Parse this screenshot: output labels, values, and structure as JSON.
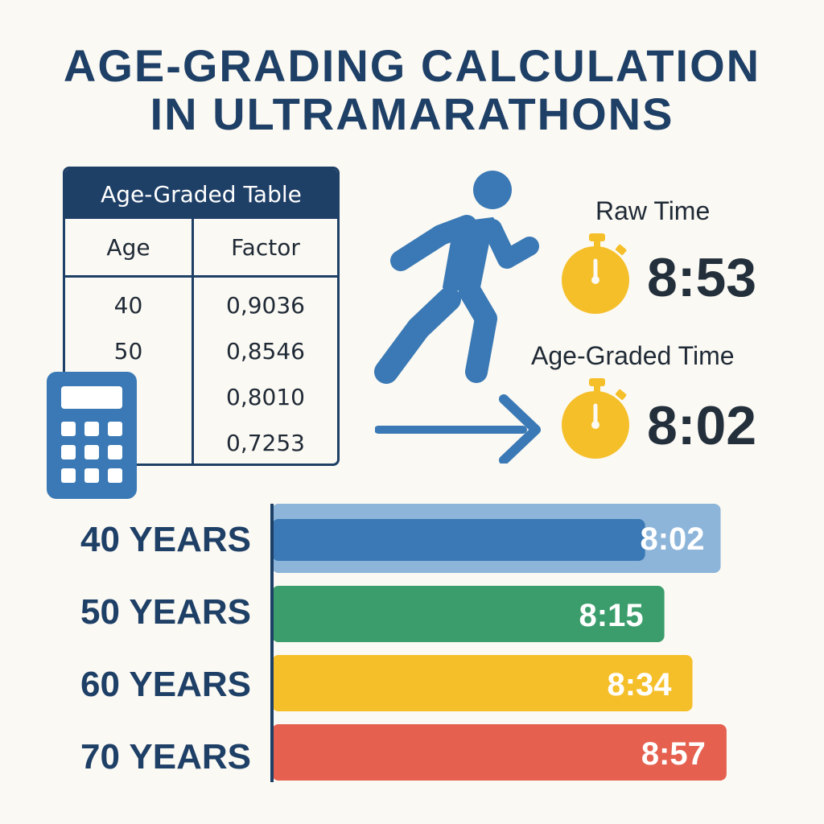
{
  "title": {
    "line1": "AGE-GRADING CALCULATION",
    "line2": "IN ULTRAMARATHONS"
  },
  "table": {
    "heading": "Age-Graded Table",
    "col_age": "Age",
    "col_factor": "Factor",
    "ages": [
      "40",
      "50",
      "",
      ""
    ],
    "factors": [
      "0,9036",
      "0,8546",
      "0,8010",
      "0,7253"
    ]
  },
  "times": {
    "raw_label": "Raw Time",
    "raw_value": "8:53",
    "graded_label": "Age-Graded Time",
    "graded_value": "8:02"
  },
  "icons": {
    "runner": "runner-icon",
    "calculator": "calculator-icon",
    "stopwatch": "stopwatch-icon",
    "arrow": "arrow-right-icon"
  },
  "colors": {
    "navy": "#1e3f66",
    "blue": "#3a79b5",
    "light_blue": "#8db5da",
    "green": "#3a9d6b",
    "yellow": "#f5bf2a",
    "red": "#e5604f"
  },
  "chart_data": {
    "type": "bar",
    "orientation": "horizontal",
    "categories": [
      "40 YEARS",
      "50 YEARS",
      "60 YEARS",
      "70 YEARS"
    ],
    "values": [
      482,
      495,
      514,
      537
    ],
    "value_labels": [
      "8:02",
      "8:15",
      "8:34",
      "8:57"
    ],
    "raw_time_value": 533,
    "raw_time_label": "8:53",
    "bar_colors": [
      "#3a79b5",
      "#3a9d6b",
      "#f5bf2a",
      "#e5604f"
    ]
  }
}
